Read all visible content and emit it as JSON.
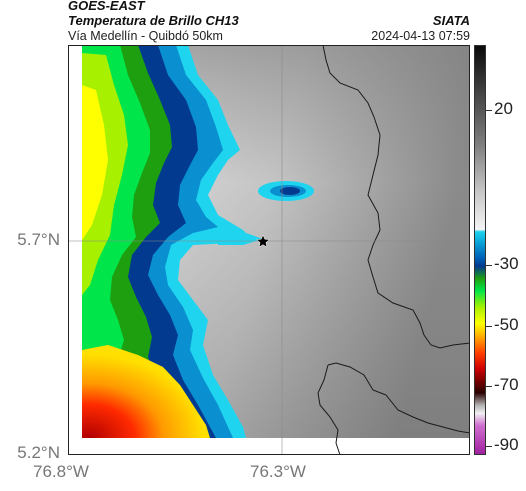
{
  "header": {
    "satellite": "GOES-EAST",
    "product": "Temperatura de Brillo CH13",
    "route": "Vía Medellín - Quibdó 50km",
    "organization": "SIATA",
    "timestamp": "2024-04-13 07:59"
  },
  "map": {
    "marker_icon": "star-icon",
    "lat_labels": [
      "5.7°N",
      "5.2°N"
    ],
    "lon_labels": [
      "76.8°W",
      "76.3°W"
    ]
  },
  "colorbar": {
    "labels": [
      "20",
      "-30",
      "-50",
      "-70",
      "-90"
    ],
    "colors": {
      "warm_gray": "#7e7e7e",
      "cyan": "#1fd4ee",
      "deep_blue": "#013a8e",
      "green": "#00e64a",
      "yellow": "#ffff00",
      "red": "#d00000",
      "magenta": "#a020a0"
    }
  }
}
